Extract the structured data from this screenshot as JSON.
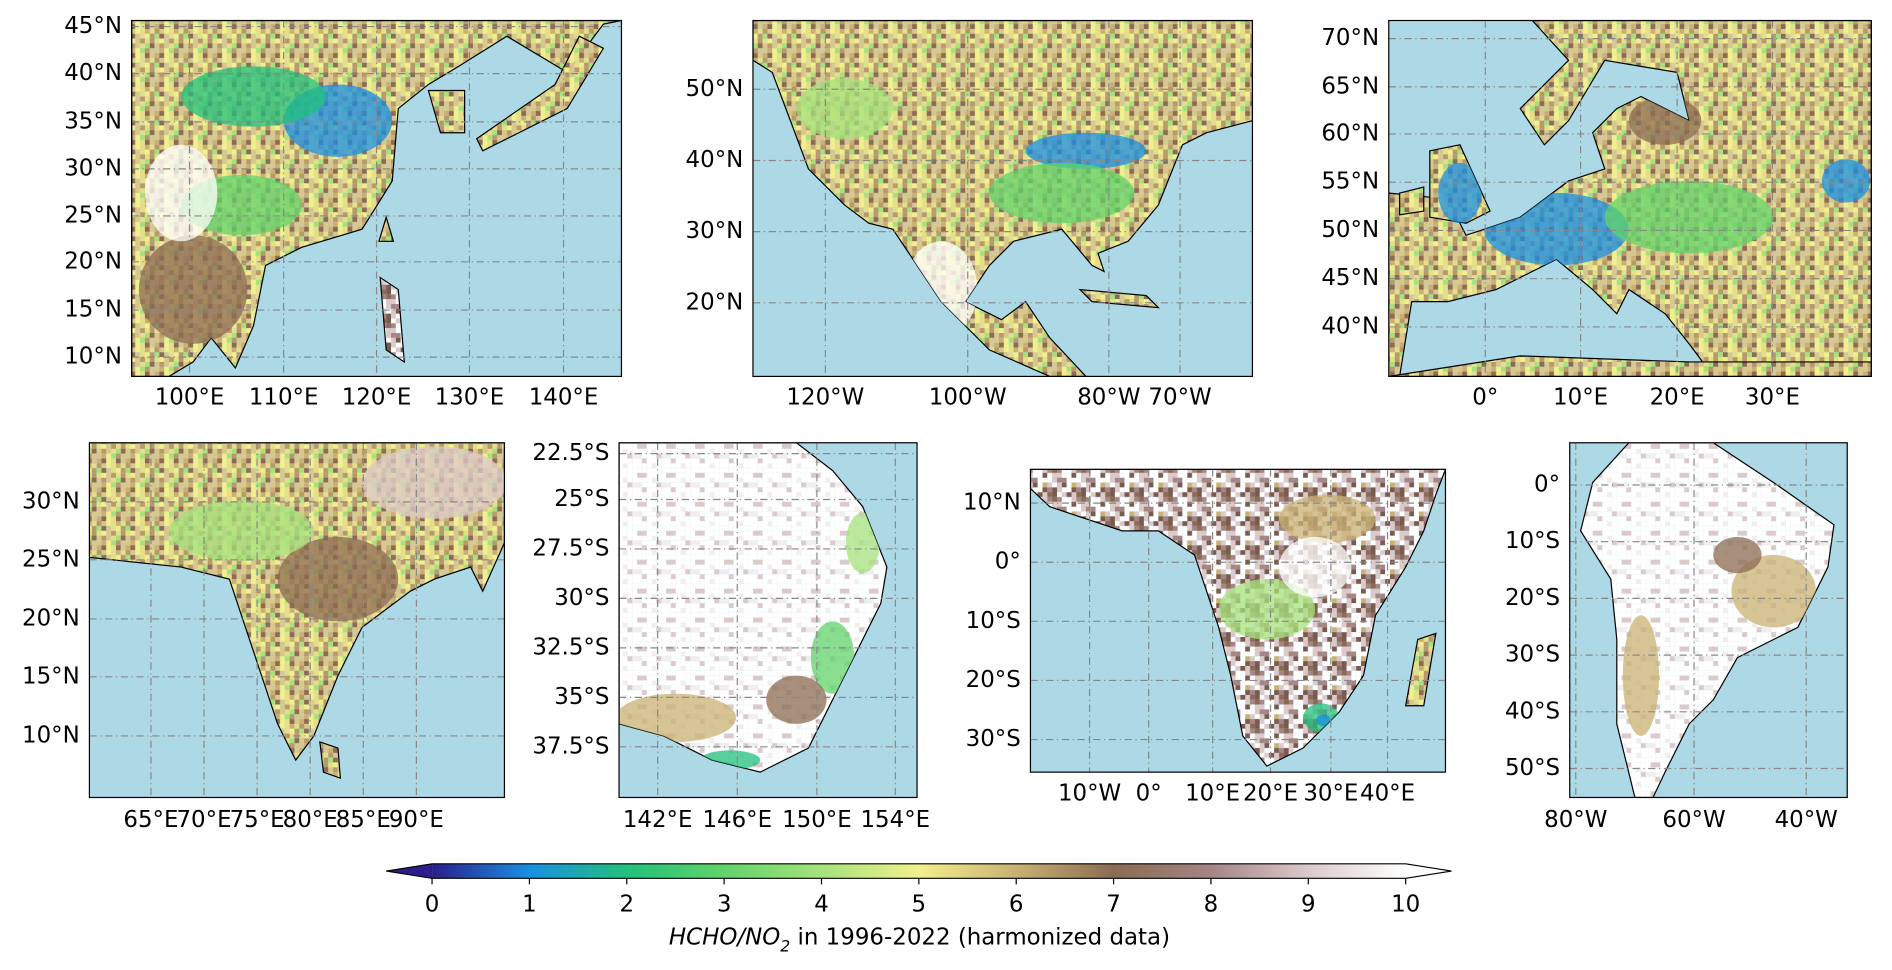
{
  "maps": [
    {
      "lat_labels": [
        "45°N",
        "40°N",
        "35°N",
        "30°N",
        "25°N",
        "20°N",
        "15°N",
        "10°N"
      ],
      "lon_labels": [
        "100°E",
        "110°E",
        "120°E",
        "130°E",
        "140°E"
      ]
    },
    {
      "lat_labels": [
        "50°N",
        "40°N",
        "30°N",
        "20°N"
      ],
      "lon_labels": [
        "120°W",
        "100°W",
        "80°W",
        "70°W"
      ]
    },
    {
      "lat_labels": [
        "70°N",
        "65°N",
        "60°N",
        "55°N",
        "50°N",
        "45°N",
        "40°N"
      ],
      "lon_labels": [
        "0°",
        "10°E",
        "20°E",
        "30°E"
      ]
    },
    {
      "lat_labels": [
        "30°N",
        "25°N",
        "20°N",
        "15°N",
        "10°N"
      ],
      "lon_labels": [
        "65°E",
        "70°E",
        "75°E",
        "80°E",
        "85°E",
        "90°E"
      ]
    },
    {
      "lat_labels": [
        "22.5°S",
        "25°S",
        "27.5°S",
        "30°S",
        "32.5°S",
        "35°S",
        "37.5°S"
      ],
      "lon_labels": [
        "142°E",
        "146°E",
        "150°E",
        "154°E"
      ]
    },
    {
      "lat_labels": [
        "10°N",
        "0°",
        "10°S",
        "20°S",
        "30°S"
      ],
      "lon_labels": [
        "10°W",
        "0°",
        "10°E",
        "20°E",
        "30°E",
        "40°E"
      ]
    },
    {
      "lat_labels": [
        "0°",
        "10°S",
        "20°S",
        "30°S",
        "40°S",
        "50°S"
      ],
      "lon_labels": [
        "80°W",
        "60°W",
        "40°W"
      ]
    }
  ],
  "colorbar": {
    "ticks": [
      0,
      1,
      2,
      3,
      4,
      5,
      6,
      7,
      8,
      9,
      10
    ],
    "colors": [
      "#2b1e8c",
      "#1a8fe3",
      "#22c07c",
      "#62d36a",
      "#a6e27c",
      "#f2f08c",
      "#c9b173",
      "#8c6b52",
      "#a58585",
      "#dccaca",
      "#ffffff"
    ],
    "extend": "both",
    "label": {
      "italic": "HCHO/NO",
      "subscript": "2",
      "text": " in 1996-2022 (harmonized data)"
    }
  }
}
